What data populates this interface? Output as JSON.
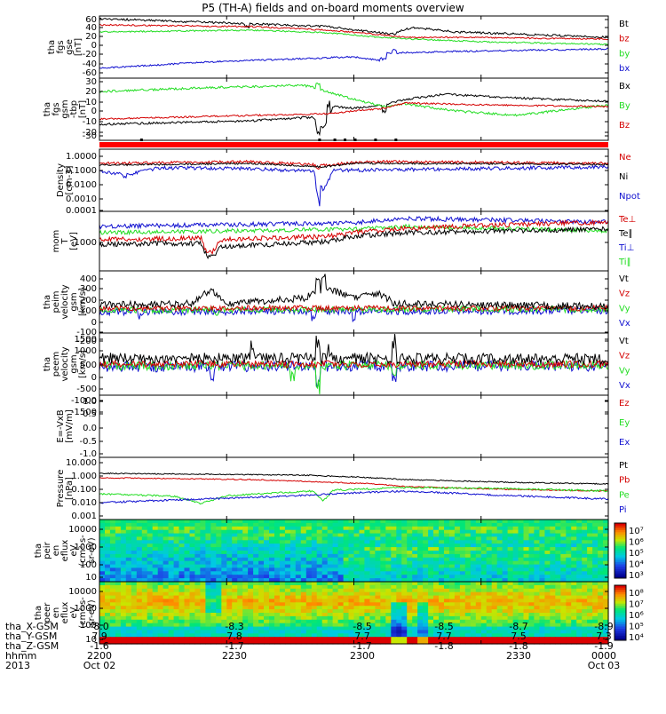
{
  "title": "P5 (TH-A) fields and on-board moments overview",
  "colors": {
    "black": "#000000",
    "red": "#d40000",
    "green": "#22dd22",
    "blue": "#1010d0"
  },
  "panels": [
    {
      "id": "fgs-gse",
      "ylabel": [
        "tha",
        "fgs",
        "gse",
        "[nT]"
      ],
      "yticks": [
        "60",
        "40",
        "20",
        "0",
        "-20",
        "-40",
        "-60"
      ],
      "legend": [
        {
          "text": "Bt",
          "color": "#000000"
        },
        {
          "text": "bz",
          "color": "#d40000"
        },
        {
          "text": "by",
          "color": "#22dd22"
        },
        {
          "text": "bx",
          "color": "#1010d0"
        }
      ]
    },
    {
      "id": "fgs-gsm",
      "ylabel": [
        "tha",
        "fgs",
        "gsm",
        "-tbp",
        "[nT]"
      ],
      "yticks": [
        "30",
        "20",
        "10",
        "0",
        "-10",
        "-20",
        "-30"
      ],
      "legend": [
        {
          "text": "Bx",
          "color": "#000000"
        },
        {
          "text": "By",
          "color": "#22dd22"
        },
        {
          "text": "Bz",
          "color": "#d40000"
        }
      ]
    },
    {
      "id": "density",
      "ylabel": [
        "Density",
        "[cm-3]"
      ],
      "yticks": [
        "1.0000",
        "0.1000",
        "0.0100",
        "0.0010",
        "0.0001"
      ],
      "legend": [
        {
          "text": "Ne",
          "color": "#d40000"
        },
        {
          "text": "Ni",
          "color": "#000000"
        },
        {
          "text": "Npot",
          "color": "#1010d0"
        }
      ]
    },
    {
      "id": "temperature",
      "ylabel": [
        "mom",
        "T",
        "[eV]"
      ],
      "yticks": [
        "1000"
      ],
      "legend": [
        {
          "text": "Te⊥",
          "color": "#d40000"
        },
        {
          "text": "Te∥",
          "color": "#000000"
        },
        {
          "text": "Ti⊥",
          "color": "#1010d0"
        },
        {
          "text": "Ti∥",
          "color": "#22dd22"
        }
      ]
    },
    {
      "id": "peim-velocity",
      "ylabel": [
        "tha",
        "peim",
        "velocity",
        "gsm",
        "[km/s]"
      ],
      "yticks": [
        "400",
        "300",
        "200",
        "100",
        "0",
        "-100",
        "-200"
      ],
      "legend": [
        {
          "text": "Vt",
          "color": "#000000"
        },
        {
          "text": "Vz",
          "color": "#d40000"
        },
        {
          "text": "Vy",
          "color": "#22dd22"
        },
        {
          "text": "Vx",
          "color": "#1010d0"
        }
      ]
    },
    {
      "id": "peem-velocity",
      "ylabel": [
        "tha",
        "peem",
        "velocity",
        "gsm",
        "[km/s]"
      ],
      "yticks": [
        "1500",
        "1000",
        "500",
        "0",
        "-500",
        "-1000",
        "-1500"
      ],
      "legend": [
        {
          "text": "Vt",
          "color": "#000000"
        },
        {
          "text": "Vz",
          "color": "#d40000"
        },
        {
          "text": "Vy",
          "color": "#22dd22"
        },
        {
          "text": "Vx",
          "color": "#1010d0"
        }
      ]
    },
    {
      "id": "efield",
      "ylabel": [
        "E=-VxB",
        "[mV/m]"
      ],
      "yticks": [
        "1.0",
        "0.5",
        "0.0",
        "-0.5",
        "-1.0"
      ],
      "legend": [
        {
          "text": "Ez",
          "color": "#d40000"
        },
        {
          "text": "Ey",
          "color": "#22dd22"
        },
        {
          "text": "Ex",
          "color": "#1010d0"
        }
      ]
    },
    {
      "id": "pressure",
      "ylabel": [
        "Pressure",
        "[nPa]"
      ],
      "yticks": [
        "10.000",
        "1.000",
        "0.100",
        "0.010",
        "0.001"
      ],
      "legend": [
        {
          "text": "Pt",
          "color": "#000000"
        },
        {
          "text": "Pb",
          "color": "#d40000"
        },
        {
          "text": "Pe",
          "color": "#22dd22"
        },
        {
          "text": "Pi",
          "color": "#1010d0"
        }
      ]
    },
    {
      "id": "peir-spec",
      "ylabel": [
        "tha",
        "peir",
        "en",
        "eflux",
        "eV",
        "(cm²-s-",
        "sr-eV)"
      ],
      "yticks": [
        "10000",
        "1000",
        "100",
        "10"
      ],
      "cbar_labels": [
        "10⁷",
        "10⁶",
        "10⁵",
        "10⁴",
        "10³"
      ]
    },
    {
      "id": "peer-spec",
      "ylabel": [
        "tha",
        "peer",
        "en",
        "eflux",
        "eV",
        "(cm²-s-",
        "sr-eV)"
      ],
      "yticks": [
        "10000",
        "1000",
        "100",
        "10"
      ],
      "cbar_labels": [
        "10⁸",
        "10⁷",
        "10⁶",
        "10⁵",
        "10⁴"
      ]
    }
  ],
  "axis_table": {
    "rows": [
      {
        "label": "tha_X-GSM",
        "values": [
          "-8.0",
          "-8.3",
          "-8.5",
          "-8.5",
          "-8.7",
          "-8.9"
        ]
      },
      {
        "label": "tha_Y-GSM",
        "values": [
          "7.9",
          "7.8",
          "7.7",
          "7.7",
          "7.5",
          "7.3"
        ]
      },
      {
        "label": "tha_Z-GSM",
        "values": [
          "-1.6",
          "-1.7",
          "-1.7",
          "-1.8",
          "-1.8",
          "-1.9"
        ]
      },
      {
        "label": "hhmm",
        "values": [
          "2200",
          "2230",
          "2300",
          "",
          "2330",
          "0000"
        ]
      },
      {
        "label": "2013",
        "values": [
          "Oct 02",
          "",
          "",
          "",
          "",
          "Oct 03"
        ]
      }
    ]
  },
  "chart_data": {
    "type": "line",
    "x": [
      "2200",
      "2230",
      "2300",
      "2330",
      "0000"
    ],
    "series": [
      {
        "name": "Bt",
        "values": [
          55,
          50,
          38,
          28,
          18
        ]
      },
      {
        "name": "bz",
        "values": [
          40,
          38,
          28,
          18,
          12
        ]
      },
      {
        "name": "by",
        "values": [
          30,
          25,
          20,
          12,
          5
        ]
      },
      {
        "name": "bx",
        "values": [
          -40,
          -28,
          -20,
          -10,
          -8
        ]
      }
    ]
  }
}
